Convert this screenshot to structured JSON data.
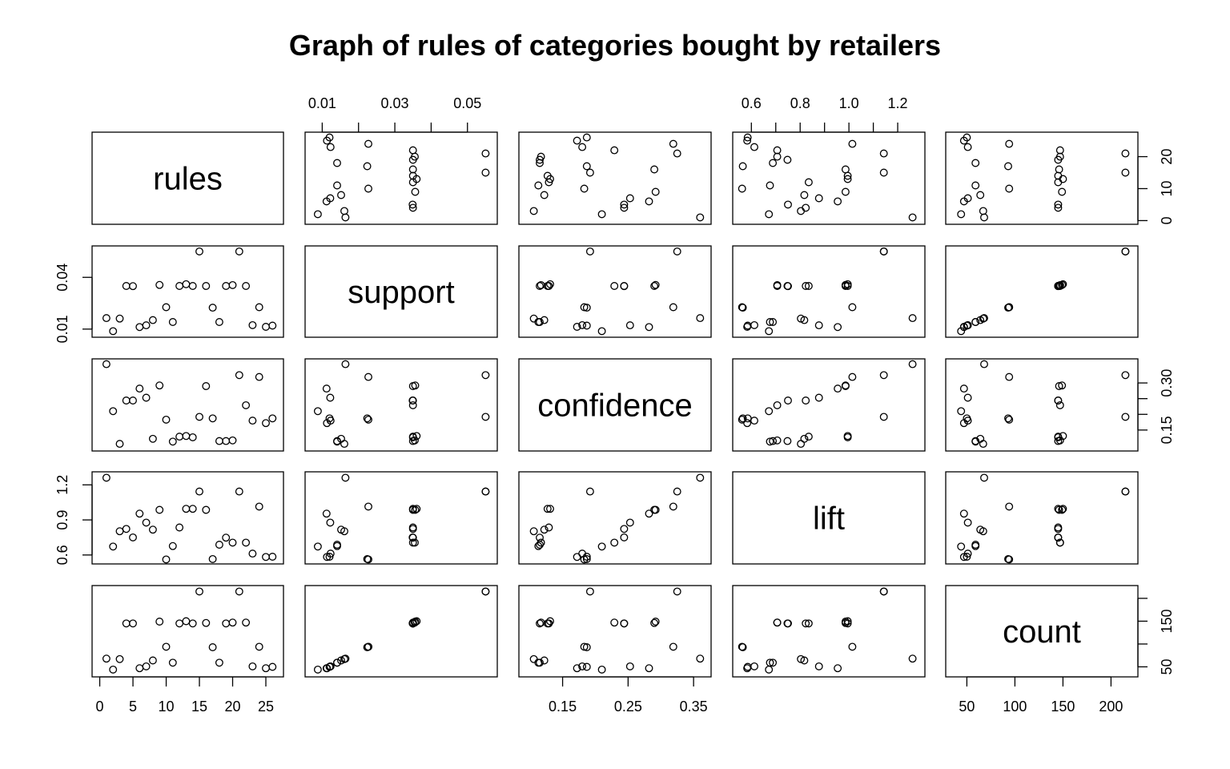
{
  "chart_data": {
    "type": "scatter",
    "title": "Graph of rules of categories bought by retailers",
    "variables": [
      "rules",
      "support",
      "confidence",
      "lift",
      "count"
    ],
    "axes": {
      "rules": {
        "ticks": [
          0,
          5,
          10,
          15,
          20,
          25
        ],
        "tick_labels": [
          "0",
          "5",
          "10",
          "15",
          "20",
          "25"
        ],
        "range": [
          0,
          26.5
        ]
      },
      "support": {
        "ticks": [
          0.01,
          0.04
        ],
        "tick_labels": [
          "0.01",
          "0.04"
        ],
        "top_ticks": [
          0.01,
          0.02,
          0.03,
          0.04,
          0.05
        ],
        "top_tick_labels": [
          "0.01",
          "",
          "0.03",
          "",
          "0.05"
        ],
        "range": [
          0.0074,
          0.0561
        ]
      },
      "confidence": {
        "ticks": [
          0.15,
          0.25,
          0.35
        ],
        "tick_labels": [
          "0.15",
          "0.25",
          "0.35"
        ],
        "right_ticks": [
          0.15,
          0.2,
          0.25,
          0.3
        ],
        "right_tick_labels": [
          "0.15",
          "",
          "",
          "0.30"
        ],
        "range": [
          0.095,
          0.365
        ]
      },
      "lift": {
        "ticks": [
          0.6,
          0.7,
          0.8,
          0.9,
          1.0,
          1.1,
          1.2
        ],
        "tick_labels": [
          "0.6",
          "",
          "0.8",
          "",
          "1.0",
          "",
          "1.2"
        ],
        "left_ticks": [
          0.6,
          0.9,
          1.2
        ],
        "left_tick_labels": [
          "0.6",
          "0.9",
          "1.2"
        ],
        "range": [
          0.555,
          1.28
        ]
      },
      "count": {
        "ticks": [
          50,
          100,
          150,
          200
        ],
        "tick_labels": [
          "50",
          "100",
          "150",
          "200"
        ],
        "right_ticks": [
          50,
          100,
          150,
          200
        ],
        "right_tick_labels": [
          "50",
          "",
          "150",
          ""
        ],
        "range": [
          36,
          220
        ]
      }
    },
    "points": [
      {
        "rules": 1,
        "support": 0.0164,
        "confidence": 0.36,
        "lift": 1.261,
        "count": 68
      },
      {
        "rules": 2,
        "support": 0.0088,
        "confidence": 0.21,
        "lift": 0.672,
        "count": 44
      },
      {
        "rules": 3,
        "support": 0.0161,
        "confidence": 0.106,
        "lift": 0.803,
        "count": 67
      },
      {
        "rules": 4,
        "support": 0.035,
        "confidence": 0.244,
        "lift": 0.823,
        "count": 145
      },
      {
        "rules": 5,
        "support": 0.0349,
        "confidence": 0.244,
        "lift": 0.75,
        "count": 145
      },
      {
        "rules": 6,
        "support": 0.0112,
        "confidence": 0.282,
        "lift": 0.954,
        "count": 47
      },
      {
        "rules": 7,
        "support": 0.0122,
        "confidence": 0.253,
        "lift": 0.877,
        "count": 51
      },
      {
        "rules": 8,
        "support": 0.0152,
        "confidence": 0.122,
        "lift": 0.817,
        "count": 64
      },
      {
        "rules": 9,
        "support": 0.0356,
        "confidence": 0.292,
        "lift": 0.986,
        "count": 149
      },
      {
        "rules": 10,
        "support": 0.0227,
        "confidence": 0.183,
        "lift": 0.562,
        "count": 94
      },
      {
        "rules": 11,
        "support": 0.0141,
        "confidence": 0.113,
        "lift": 0.676,
        "count": 59
      },
      {
        "rules": 12,
        "support": 0.035,
        "confidence": 0.129,
        "lift": 0.835,
        "count": 145
      },
      {
        "rules": 13,
        "support": 0.036,
        "confidence": 0.131,
        "lift": 0.995,
        "count": 150
      },
      {
        "rules": 14,
        "support": 0.035,
        "confidence": 0.127,
        "lift": 0.995,
        "count": 145
      },
      {
        "rules": 15,
        "support": 0.055,
        "confidence": 0.192,
        "lift": 1.143,
        "count": 215
      },
      {
        "rules": 16,
        "support": 0.035,
        "confidence": 0.29,
        "lift": 0.986,
        "count": 146
      },
      {
        "rules": 17,
        "support": 0.0224,
        "confidence": 0.187,
        "lift": 0.565,
        "count": 93
      },
      {
        "rules": 18,
        "support": 0.0141,
        "confidence": 0.115,
        "lift": 0.688,
        "count": 59
      },
      {
        "rules": 19,
        "support": 0.035,
        "confidence": 0.115,
        "lift": 0.748,
        "count": 145
      },
      {
        "rules": 20,
        "support": 0.0355,
        "confidence": 0.117,
        "lift": 0.706,
        "count": 147
      },
      {
        "rules": 21,
        "support": 0.055,
        "confidence": 0.325,
        "lift": 1.143,
        "count": 215
      },
      {
        "rules": 22,
        "support": 0.035,
        "confidence": 0.229,
        "lift": 0.706,
        "count": 147
      },
      {
        "rules": 23,
        "support": 0.0123,
        "confidence": 0.18,
        "lift": 0.612,
        "count": 51
      },
      {
        "rules": 24,
        "support": 0.0227,
        "confidence": 0.319,
        "lift": 1.014,
        "count": 94
      },
      {
        "rules": 25,
        "support": 0.0113,
        "confidence": 0.172,
        "lift": 0.583,
        "count": 47
      },
      {
        "rules": 26,
        "support": 0.012,
        "confidence": 0.187,
        "lift": 0.585,
        "count": 50
      }
    ],
    "grid": false,
    "legend": "none"
  }
}
